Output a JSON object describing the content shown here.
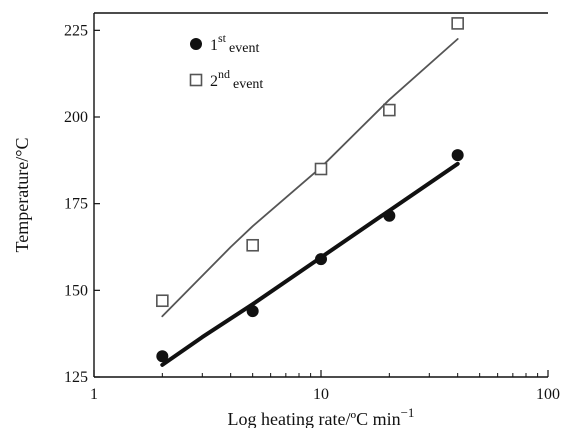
{
  "chart_data": {
    "type": "scatter",
    "title": "",
    "xlabel": "Log heating rate/ºC min",
    "xlabel_superscript": "−1",
    "ylabel": "Temperature/°C",
    "xscale": "log",
    "xlim": [
      1,
      100
    ],
    "ylim": [
      125,
      230
    ],
    "xticks": [
      1,
      10,
      100
    ],
    "xtick_labels": [
      "1",
      "10",
      "100"
    ],
    "yticks": [
      125,
      150,
      175,
      200,
      225
    ],
    "ytick_labels": [
      "125",
      "150",
      "175",
      "200",
      "225"
    ],
    "grid": false,
    "legend_position": "top-left",
    "series": [
      {
        "name": "1st event",
        "legend_prefix": "1",
        "legend_superscript": "st",
        "legend_suffix": "event",
        "marker": "filled-circle",
        "color": "#111111",
        "x": [
          2,
          5,
          10,
          20,
          40
        ],
        "y": [
          131,
          144,
          159,
          171.5,
          189
        ],
        "fit_line": {
          "x": [
            2,
            3,
            5,
            10,
            20,
            40
          ],
          "y": [
            128.5,
            136.5,
            146,
            159.5,
            173,
            186.5
          ],
          "color": "#111111"
        }
      },
      {
        "name": "2nd event",
        "legend_prefix": "2",
        "legend_superscript": "nd",
        "legend_suffix": "event",
        "marker": "open-square",
        "color": "#555555",
        "x": [
          2,
          5,
          10,
          20,
          40
        ],
        "y": [
          147,
          163,
          185,
          202,
          227
        ],
        "fit_line": {
          "x": [
            2,
            4,
            5,
            10,
            20,
            40
          ],
          "y": [
            142.5,
            162.5,
            168.5,
            185.5,
            205,
            222.5
          ],
          "color": "#555555"
        }
      }
    ]
  }
}
